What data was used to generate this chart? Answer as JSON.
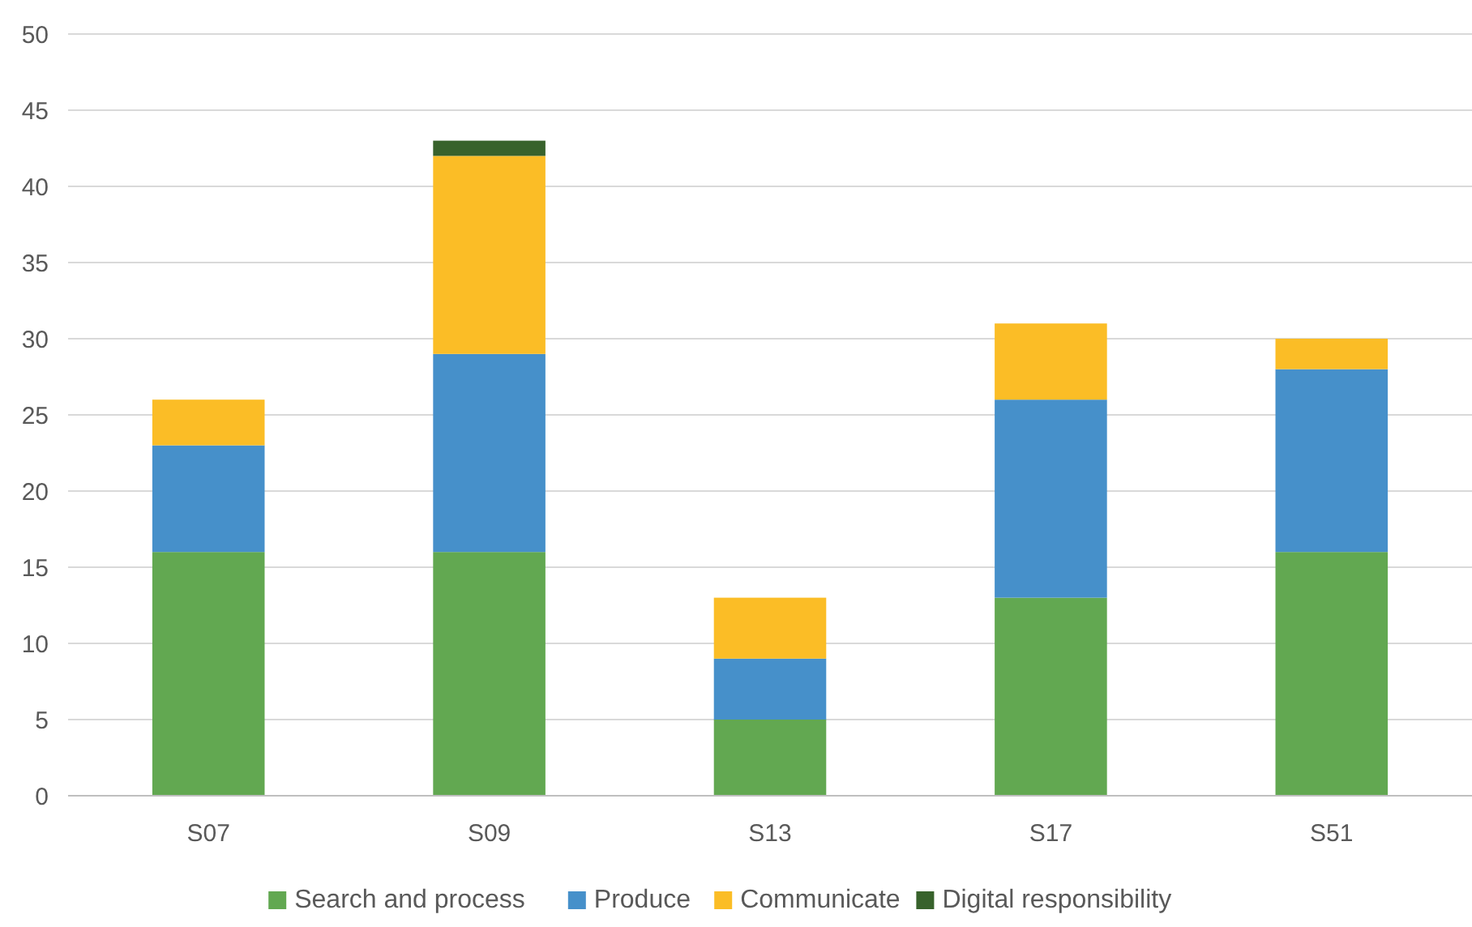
{
  "chart_data": {
    "type": "bar",
    "stacked": true,
    "categories": [
      "S07",
      "S09",
      "S13",
      "S17",
      "S51"
    ],
    "series": [
      {
        "name": "Search and process",
        "color": "#62a851",
        "values": [
          16,
          16,
          5,
          13,
          16
        ]
      },
      {
        "name": "Produce",
        "color": "#4690ca",
        "values": [
          7,
          13,
          4,
          13,
          12
        ]
      },
      {
        "name": "Communicate",
        "color": "#fbbd26",
        "values": [
          3,
          13,
          4,
          5,
          2
        ]
      },
      {
        "name": "Digital responsibility",
        "color": "#38622c",
        "values": [
          0,
          1,
          0,
          0,
          0
        ]
      }
    ],
    "ylim": [
      0,
      50
    ],
    "yticks": [
      0,
      5,
      10,
      15,
      20,
      25,
      30,
      35,
      40,
      45,
      50
    ],
    "grid": "y",
    "legend": "bottom"
  }
}
